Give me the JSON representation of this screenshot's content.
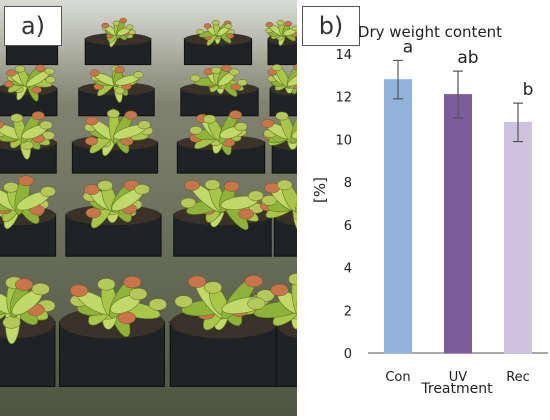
{
  "panel_a": {
    "label": "a)"
  },
  "panel_b": {
    "label": "b)"
  },
  "colors": {
    "con": "#92b4dc",
    "uv": "#7d5c9e",
    "rec": "#cdc3de",
    "axis": "#8c8c8c",
    "error": "#555555"
  },
  "chart_data": {
    "type": "bar",
    "title": "Dry weight content",
    "xlabel": "Treatment",
    "ylabel": "[%]",
    "categories": [
      "Con",
      "UV",
      "Rec"
    ],
    "values": [
      12.8,
      12.1,
      10.8
    ],
    "errors": [
      0.9,
      1.1,
      0.9
    ],
    "significance": [
      "a",
      "ab",
      "b"
    ],
    "ylim": [
      0,
      14
    ],
    "yticks": [
      "0",
      "2",
      "4",
      "6",
      "8",
      "10",
      "12",
      "14"
    ],
    "grid": false,
    "legend": "none"
  }
}
